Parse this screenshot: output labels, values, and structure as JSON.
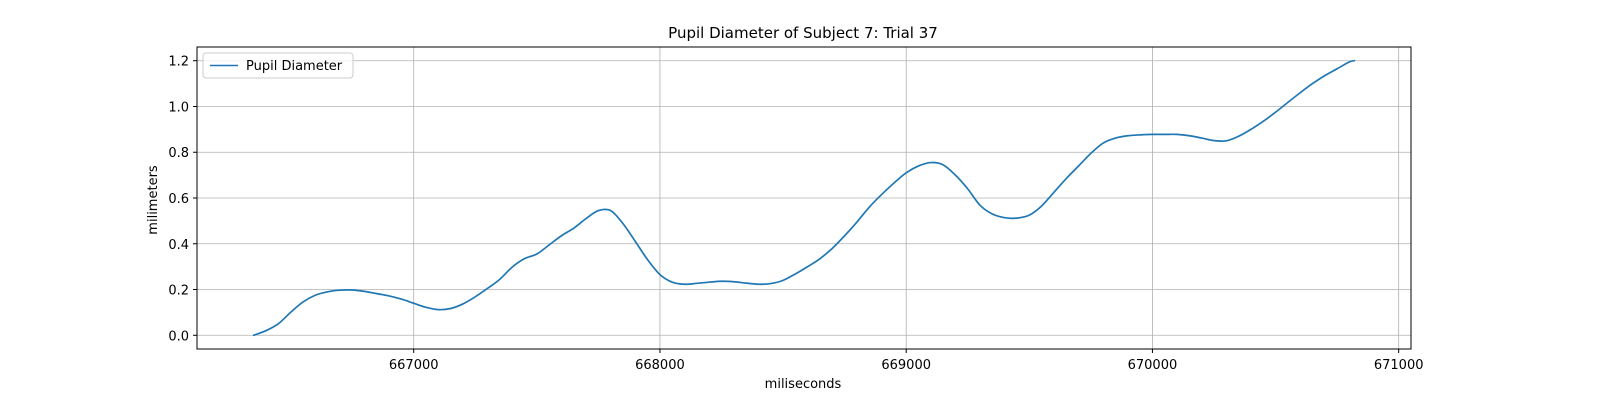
{
  "chart_data": {
    "type": "line",
    "title": "Pupil Diameter of Subject 7: Trial 37",
    "xlabel": "miliseconds",
    "ylabel": "milimeters",
    "xlim": [
      666120,
      671050
    ],
    "ylim": [
      -0.06,
      1.26
    ],
    "xticks": [
      667000,
      668000,
      669000,
      670000,
      671000
    ],
    "yticks": [
      0.0,
      0.2,
      0.4,
      0.6,
      0.8,
      1.0,
      1.2
    ],
    "xtick_labels": [
      "667000",
      "668000",
      "669000",
      "670000",
      "671000"
    ],
    "ytick_labels": [
      "0.0",
      "0.2",
      "0.4",
      "0.6",
      "0.8",
      "1.0",
      "1.2"
    ],
    "grid": true,
    "legend_position": "upper-left",
    "line_color": "#1f77b4",
    "series": [
      {
        "name": "Pupil Diameter",
        "x": [
          666350,
          666400,
          666450,
          666500,
          666550,
          666600,
          666650,
          666700,
          666750,
          666800,
          666850,
          666900,
          666950,
          667000,
          667050,
          667100,
          667150,
          667200,
          667250,
          667300,
          667350,
          667400,
          667450,
          667500,
          667550,
          667600,
          667650,
          667700,
          667750,
          667800,
          667850,
          667900,
          667950,
          668000,
          668050,
          668100,
          668150,
          668200,
          668250,
          668300,
          668350,
          668400,
          668450,
          668500,
          668550,
          668600,
          668650,
          668700,
          668750,
          668800,
          668850,
          668900,
          668950,
          669000,
          669050,
          669100,
          669150,
          669200,
          669250,
          669300,
          669350,
          669400,
          669450,
          669500,
          669550,
          669600,
          669650,
          669700,
          669750,
          669800,
          669850,
          669900,
          669950,
          670000,
          670050,
          670100,
          670150,
          670200,
          670250,
          670300,
          670350,
          670400,
          670450,
          670500,
          670550,
          670600,
          670650,
          670700,
          670750,
          670800,
          670820
        ],
        "y": [
          0.0,
          0.02,
          0.05,
          0.1,
          0.145,
          0.175,
          0.19,
          0.197,
          0.198,
          0.192,
          0.182,
          0.172,
          0.158,
          0.14,
          0.122,
          0.112,
          0.117,
          0.137,
          0.168,
          0.205,
          0.245,
          0.298,
          0.335,
          0.355,
          0.395,
          0.435,
          0.468,
          0.51,
          0.545,
          0.545,
          0.488,
          0.41,
          0.33,
          0.265,
          0.232,
          0.223,
          0.227,
          0.232,
          0.236,
          0.234,
          0.228,
          0.223,
          0.226,
          0.24,
          0.268,
          0.3,
          0.335,
          0.38,
          0.435,
          0.495,
          0.56,
          0.615,
          0.665,
          0.71,
          0.74,
          0.755,
          0.745,
          0.7,
          0.64,
          0.568,
          0.53,
          0.514,
          0.512,
          0.525,
          0.565,
          0.625,
          0.685,
          0.74,
          0.795,
          0.84,
          0.862,
          0.872,
          0.876,
          0.878,
          0.878,
          0.878,
          0.872,
          0.862,
          0.851,
          0.85,
          0.87,
          0.9,
          0.935,
          0.975,
          1.018,
          1.06,
          1.1,
          1.135,
          1.165,
          1.195,
          1.2
        ]
      }
    ]
  }
}
